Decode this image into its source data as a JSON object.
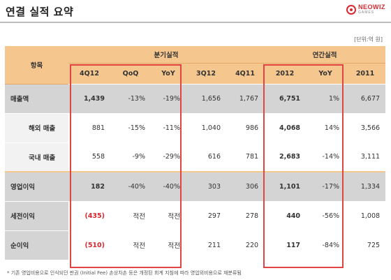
{
  "header": {
    "title": "연결 실적 요약",
    "logo_name": "NEOWIZ",
    "logo_sub": "GAMES",
    "unit_note": "[단위:억 원]"
  },
  "table": {
    "row_header": "항목",
    "group_quarter": "분기실적",
    "group_annual": "연간실적",
    "columns": [
      "4Q12",
      "QoQ",
      "YoY",
      "3Q12",
      "4Q11",
      "2012",
      "YoY",
      "2011"
    ],
    "rows": [
      {
        "label": "매출액",
        "cells": [
          "1,439",
          "-13%",
          "-19%",
          "1,656",
          "1,767",
          "6,751",
          "1%",
          "6,677"
        ]
      },
      {
        "label": "해외 매출",
        "cells": [
          "881",
          "-15%",
          "-11%",
          "1,040",
          "986",
          "4,068",
          "14%",
          "3,566"
        ]
      },
      {
        "label": "국내 매출",
        "cells": [
          "558",
          "-9%",
          "-29%",
          "616",
          "781",
          "2,683",
          "-14%",
          "3,111"
        ]
      },
      {
        "label": "영업이익",
        "cells": [
          "182",
          "-40%",
          "-40%",
          "303",
          "306",
          "1,101",
          "-17%",
          "1,334"
        ]
      },
      {
        "label": "세전이익",
        "cells": [
          "(435)",
          "적전",
          "적전",
          "297",
          "278",
          "440",
          "-56%",
          "1,008"
        ]
      },
      {
        "label": "순이익",
        "cells": [
          "(510)",
          "적전",
          "적전",
          "211",
          "220",
          "117",
          "-84%",
          "725"
        ]
      }
    ]
  },
  "footnote": "* 기존 영업비용으로 인식되던 판권 (Initial Fee) 손상차손 등은 개정된 회계 지침에 따라 영업외비용으로 재분류됨",
  "colors": {
    "header_bg": "#f6c68f",
    "highlight_box": "#e24444",
    "negative_red": "#d9282f",
    "shade_bg": "#d4d4d4"
  }
}
